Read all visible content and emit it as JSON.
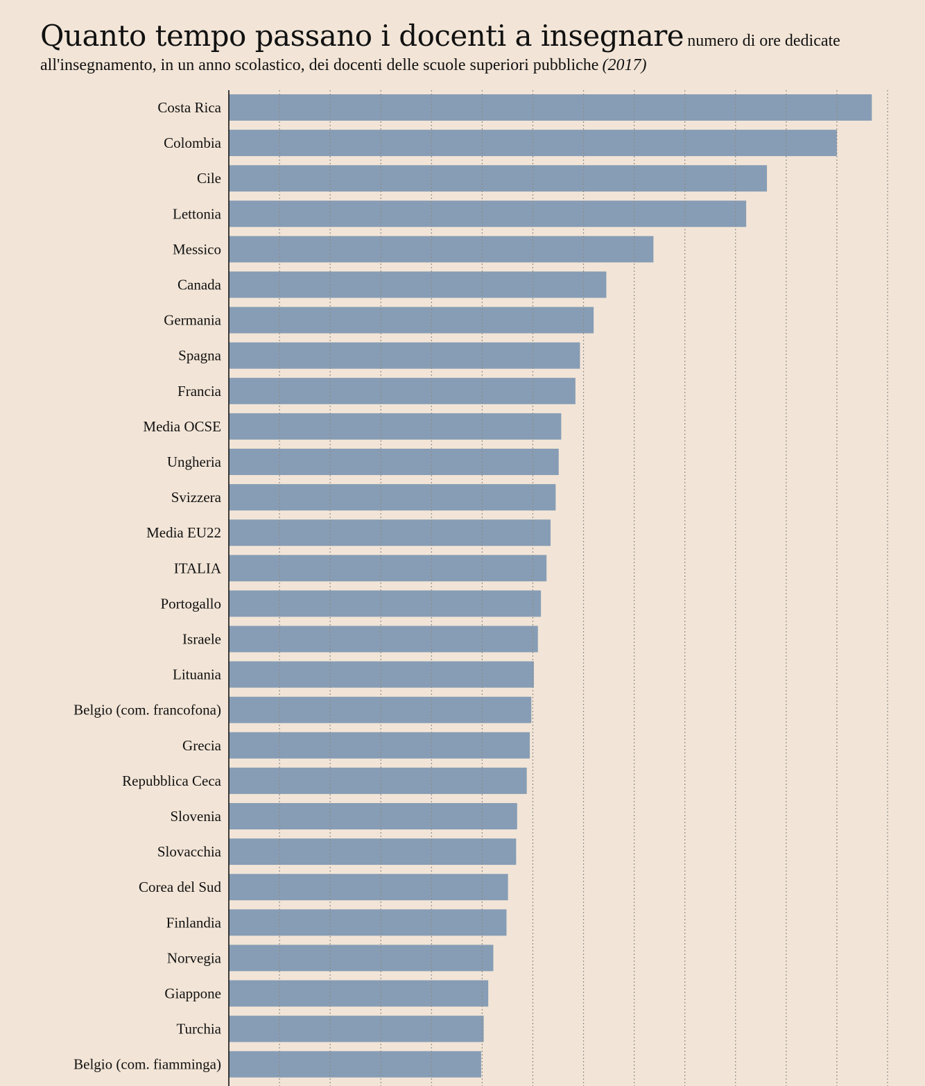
{
  "header": {
    "title": "Quanto tempo passano i docenti a insegnare",
    "subtitle": "numero di ore dedicate all'insegnamento, in un anno scolastico, dei docenti delle scuole superiori pubbliche",
    "year": "(2017)"
  },
  "colors": {
    "background": "#f2e5d7",
    "bar": "#879db5",
    "gridline": "#8f8c88",
    "axis": "#111111",
    "text": "#111111"
  },
  "chart_data": {
    "type": "bar",
    "orientation": "horizontal",
    "title": "Quanto tempo passano i docenti a insegnare",
    "subtitle": "numero di ore dedicate all'insegnamento, in un anno scolastico, dei docenti delle scuole superiori pubbliche (2017)",
    "xlabel": "",
    "ylabel": "",
    "grid": true,
    "xlim": [
      0,
      1300
    ],
    "categories": [
      "Costa Rica",
      "Colombia",
      "Cile",
      "Lettonia",
      "Messico",
      "Canada",
      "Germania",
      "Spagna",
      "Francia",
      "Media OCSE",
      "Ungheria",
      "Svizzera",
      "Media EU22",
      "ITALIA",
      "Portogallo",
      "Israele",
      "Lituania",
      "Belgio (com. francofona)",
      "Grecia",
      "Repubblica Ceca",
      "Slovenia",
      "Slovacchia",
      "Corea del Sud",
      "Finlandia",
      "Norvegia",
      "Giappone",
      "Turchia",
      "Belgio (com. fiamminga)"
    ],
    "values": [
      1269,
      1200,
      1062,
      1021,
      838,
      745,
      720,
      693,
      684,
      656,
      651,
      645,
      635,
      627,
      616,
      610,
      602,
      597,
      594,
      588,
      569,
      567,
      551,
      548,
      522,
      512,
      503,
      498
    ]
  }
}
